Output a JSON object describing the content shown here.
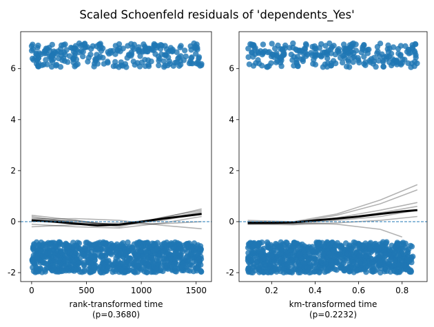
{
  "figure": {
    "title": "Scaled Schoenfeld residuals of 'dependents_Yes'"
  },
  "chart_data": [
    {
      "type": "scatter",
      "xlabel": "rank-transformed time",
      "pvalue_label": "(p=0.3680)",
      "xlim": [
        -100,
        1640
      ],
      "ylim": [
        -2.35,
        7.45
      ],
      "xticks": [
        0,
        500,
        1000,
        1500
      ],
      "xtick_labels": [
        "0",
        "500",
        "1000",
        "1500"
      ],
      "yticks": [
        -2,
        0,
        2,
        4,
        6
      ],
      "ytick_labels": [
        "-2",
        "0",
        "2",
        "4",
        "6"
      ],
      "grid": false,
      "point_color": "#1f77b4",
      "upper_cluster": {
        "x_range": [
          0,
          1550
        ],
        "y_range": [
          6.05,
          7.0
        ],
        "description_values": [
          6.2,
          6.4,
          6.6,
          6.8,
          7.0
        ]
      },
      "lower_cluster": {
        "x_range": [
          0,
          1550
        ],
        "y_range": [
          -2.0,
          -0.8
        ]
      },
      "smooth_fit": {
        "x": [
          0,
          200,
          400,
          600,
          800,
          1000,
          1200,
          1400,
          1550
        ],
        "y": [
          0.05,
          0.0,
          -0.08,
          -0.15,
          -0.12,
          0.0,
          0.12,
          0.22,
          0.3
        ]
      },
      "bootstrap_lines": [
        {
          "x": [
            0,
            400,
            800,
            1200,
            1550
          ],
          "y": [
            0.25,
            0.05,
            -0.15,
            0.15,
            0.5
          ]
        },
        {
          "x": [
            0,
            400,
            800,
            1200,
            1550
          ],
          "y": [
            -0.2,
            -0.12,
            -0.05,
            0.1,
            0.4
          ]
        },
        {
          "x": [
            0,
            400,
            800,
            1200,
            1550
          ],
          "y": [
            0.1,
            0.12,
            0.05,
            -0.15,
            -0.28
          ]
        },
        {
          "x": [
            0,
            400,
            800,
            1200,
            1550
          ],
          "y": [
            -0.1,
            -0.2,
            -0.25,
            -0.05,
            0.2
          ]
        },
        {
          "x": [
            0,
            400,
            800,
            1200,
            1550
          ],
          "y": [
            0.15,
            0.0,
            -0.12,
            0.05,
            0.35
          ]
        },
        {
          "x": [
            0,
            400,
            800,
            1200,
            1550
          ],
          "y": [
            0.0,
            0.05,
            -0.2,
            0.18,
            0.45
          ]
        },
        {
          "x": [
            0,
            400,
            800,
            1200,
            1550
          ],
          "y": [
            0.2,
            -0.05,
            -0.1,
            -0.08,
            0.0
          ]
        }
      ],
      "reference_line_y": 0
    },
    {
      "type": "scatter",
      "xlabel": "km-transformed time",
      "pvalue_label": "(p=0.2232)",
      "xlim": [
        0.05,
        0.915
      ],
      "ylim": [
        -2.35,
        7.45
      ],
      "xticks": [
        0.2,
        0.4,
        0.6,
        0.8
      ],
      "xtick_labels": [
        "0.2",
        "0.4",
        "0.6",
        "0.8"
      ],
      "yticks": [
        -2,
        0,
        2,
        4,
        6
      ],
      "ytick_labels": [
        "-2",
        "0",
        "2",
        "4",
        "6"
      ],
      "grid": false,
      "point_color": "#1f77b4",
      "upper_cluster": {
        "x_range": [
          0.09,
          0.87
        ],
        "y_range": [
          6.05,
          7.0
        ]
      },
      "lower_cluster": {
        "x_range": [
          0.09,
          0.85
        ],
        "y_range": [
          -2.0,
          -0.8
        ]
      },
      "smooth_fit": {
        "x": [
          0.09,
          0.2,
          0.3,
          0.4,
          0.5,
          0.6,
          0.7,
          0.8,
          0.87
        ],
        "y": [
          -0.05,
          -0.05,
          -0.03,
          0.05,
          0.12,
          0.2,
          0.3,
          0.4,
          0.45
        ]
      },
      "bootstrap_lines": [
        {
          "x": [
            0.09,
            0.3,
            0.5,
            0.7,
            0.87
          ],
          "y": [
            -0.05,
            0.0,
            0.3,
            0.85,
            1.45
          ]
        },
        {
          "x": [
            0.09,
            0.3,
            0.5,
            0.7,
            0.87
          ],
          "y": [
            -0.1,
            -0.05,
            0.25,
            0.7,
            1.25
          ]
        },
        {
          "x": [
            0.09,
            0.3,
            0.5,
            0.7,
            0.87
          ],
          "y": [
            0.0,
            -0.05,
            0.15,
            0.45,
            0.75
          ]
        },
        {
          "x": [
            0.09,
            0.3,
            0.5,
            0.7,
            0.8
          ],
          "y": [
            0.0,
            -0.05,
            -0.1,
            -0.3,
            -0.6
          ]
        },
        {
          "x": [
            0.09,
            0.3,
            0.5,
            0.7,
            0.87
          ],
          "y": [
            -0.05,
            -0.1,
            0.05,
            0.2,
            0.45
          ]
        },
        {
          "x": [
            0.09,
            0.3,
            0.5,
            0.7,
            0.87
          ],
          "y": [
            0.05,
            0.0,
            0.1,
            0.35,
            0.6
          ]
        },
        {
          "x": [
            0.09,
            0.3,
            0.5,
            0.7,
            0.87
          ],
          "y": [
            -0.1,
            -0.12,
            -0.05,
            0.05,
            0.2
          ]
        }
      ],
      "reference_line_y": 0
    }
  ]
}
